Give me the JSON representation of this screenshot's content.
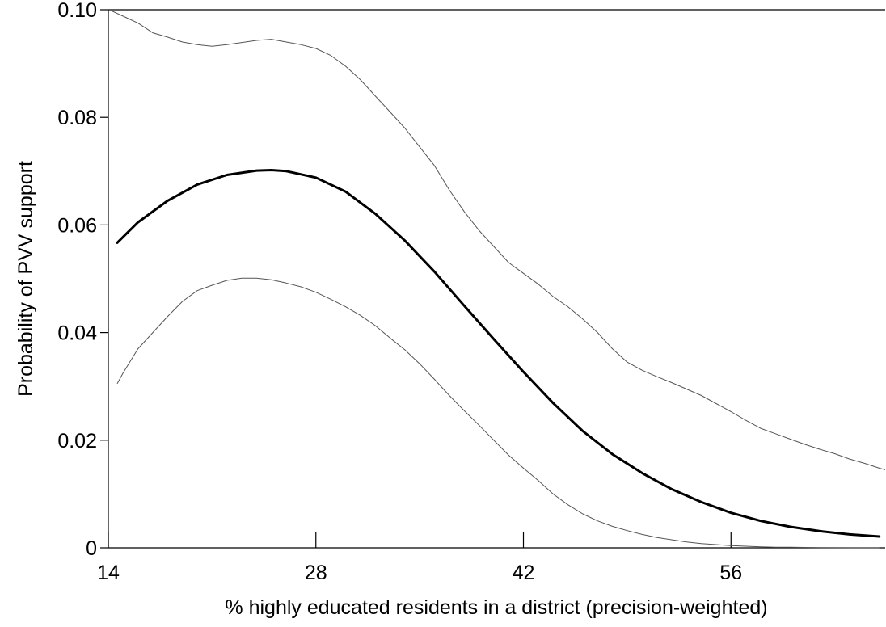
{
  "chart_data": {
    "type": "line",
    "title": "",
    "xlabel": "% highly educated residents in a district (precision-weighted)",
    "ylabel": "Probability of PVV support",
    "xlim": [
      14,
      66.4
    ],
    "ylim": [
      0,
      0.1
    ],
    "x_ticks": [
      14,
      28,
      42,
      56
    ],
    "x_tick_labels": [
      "14",
      "28",
      "42",
      "56"
    ],
    "y_ticks": [
      0,
      0.02,
      0.04,
      0.06,
      0.08,
      0.1
    ],
    "y_tick_labels": [
      "0",
      "0.02",
      "0.04",
      "0.06",
      "0.08",
      "0.10"
    ],
    "grid": false,
    "legend": "none",
    "series": [
      {
        "role": "estimate",
        "x": [
          14.6,
          16,
          18,
          20,
          22,
          24,
          25,
          26,
          28,
          30,
          32,
          34,
          36,
          38,
          40,
          42,
          44,
          46,
          48,
          50,
          52,
          54,
          56,
          58,
          60,
          62,
          64,
          66
        ],
        "values": [
          0.0567,
          0.0605,
          0.0645,
          0.0675,
          0.0693,
          0.0701,
          0.0702,
          0.07,
          0.0688,
          0.0662,
          0.0621,
          0.0571,
          0.0513,
          0.045,
          0.0388,
          0.0327,
          0.0269,
          0.0217,
          0.0174,
          0.0139,
          0.0109,
          0.0085,
          0.0065,
          0.005,
          0.0039,
          0.0031,
          0.0025,
          0.0021
        ]
      },
      {
        "role": "ci-upper",
        "x": [
          14.2,
          15,
          16,
          17,
          18,
          19,
          20,
          21,
          22,
          23,
          24,
          25,
          26,
          27,
          28,
          29,
          30,
          31,
          32,
          33,
          34,
          35,
          36,
          37,
          38,
          39,
          40,
          41,
          42,
          43,
          44,
          45,
          46,
          47,
          48,
          49,
          50,
          51,
          52,
          53,
          54,
          55,
          56,
          57,
          58,
          59,
          60,
          61,
          62,
          63,
          64,
          65,
          66,
          66.4
        ],
        "values": [
          0.0998,
          0.0988,
          0.0975,
          0.0957,
          0.0949,
          0.094,
          0.0935,
          0.0932,
          0.0935,
          0.0939,
          0.0943,
          0.0945,
          0.094,
          0.0935,
          0.0928,
          0.0915,
          0.0895,
          0.087,
          0.084,
          0.081,
          0.078,
          0.0745,
          0.071,
          0.0665,
          0.0625,
          0.059,
          0.056,
          0.053,
          0.051,
          0.049,
          0.0467,
          0.0448,
          0.0425,
          0.04,
          0.037,
          0.0345,
          0.033,
          0.0318,
          0.0307,
          0.0295,
          0.0283,
          0.0268,
          0.0253,
          0.0237,
          0.0222,
          0.0212,
          0.0202,
          0.0192,
          0.0183,
          0.0175,
          0.0165,
          0.0157,
          0.0148,
          0.0145
        ]
      },
      {
        "role": "ci-lower",
        "x": [
          14.6,
          15,
          16,
          17,
          18,
          19,
          20,
          21,
          22,
          23,
          24,
          25,
          26,
          27,
          28,
          29,
          30,
          31,
          32,
          33,
          34,
          35,
          36,
          37,
          38,
          39,
          40,
          41,
          42,
          43,
          44,
          45,
          46,
          47,
          48,
          49,
          50,
          51,
          52,
          53,
          54,
          55,
          56,
          57,
          58,
          59,
          60,
          62,
          64,
          66
        ],
        "values": [
          0.0305,
          0.0325,
          0.037,
          0.04,
          0.043,
          0.0458,
          0.0478,
          0.0488,
          0.0497,
          0.0501,
          0.0501,
          0.0498,
          0.0492,
          0.0485,
          0.0475,
          0.0462,
          0.0448,
          0.0432,
          0.0413,
          0.039,
          0.0368,
          0.0342,
          0.0313,
          0.0283,
          0.0255,
          0.0228,
          0.02,
          0.0172,
          0.0148,
          0.0125,
          0.01,
          0.008,
          0.0063,
          0.005,
          0.004,
          0.0032,
          0.0025,
          0.0019,
          0.0015,
          0.0011,
          0.0008,
          0.0006,
          0.0004,
          0.0003,
          0.0002,
          0.0001,
          0.0001,
          5e-05,
          2e-05,
          1e-05
        ]
      }
    ]
  }
}
